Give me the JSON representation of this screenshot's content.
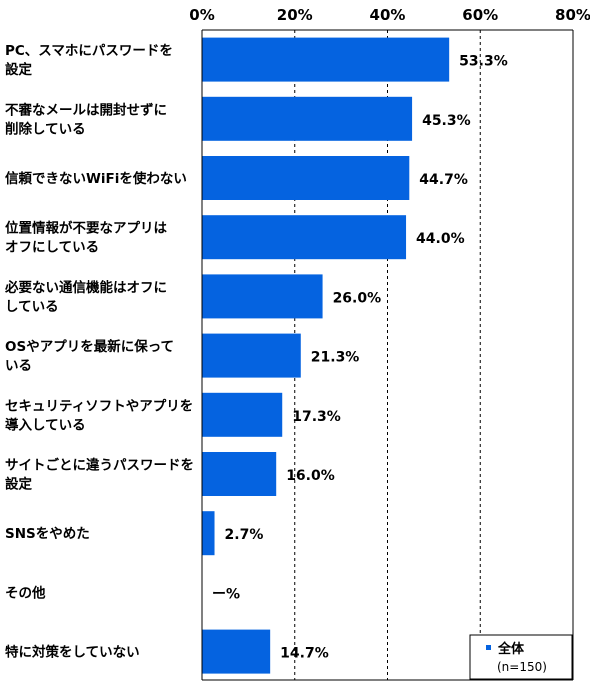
{
  "chart_data": {
    "type": "bar",
    "orientation": "horizontal",
    "categories": [
      [
        "PC、スマホにパスワードを",
        "設定"
      ],
      [
        "不審なメールは開封せずに",
        "削除している"
      ],
      [
        "信頼できないWiFiを使わない"
      ],
      [
        "位置情報が不要なアプリは",
        "オフにしている"
      ],
      [
        "必要ない通信機能はオフに",
        "している"
      ],
      [
        "OSやアプリを最新に保って",
        "いる"
      ],
      [
        "セキュリティソフトやアプリを",
        "導入している"
      ],
      [
        "サイトごとに違うパスワードを",
        "設定"
      ],
      [
        "SNSをやめた"
      ],
      [
        "その他"
      ],
      [
        "特に対策をしていない"
      ]
    ],
    "values": [
      53.3,
      45.3,
      44.7,
      44.0,
      26.0,
      21.3,
      17.3,
      16.0,
      2.7,
      0,
      14.7
    ],
    "value_labels": [
      "53.3%",
      "45.3%",
      "44.7%",
      "44.0%",
      "26.0%",
      "21.3%",
      "17.3%",
      "16.0%",
      "2.7%",
      "ー%",
      "14.7%"
    ],
    "xlim": [
      0,
      80
    ],
    "x_ticks": [
      "0%",
      "20%",
      "40%",
      "60%",
      "80%"
    ],
    "x_tick_values": [
      0,
      20,
      40,
      60,
      80
    ],
    "grid": true,
    "grid_style": "dashed",
    "bar_color": "#0563E0",
    "legend": {
      "position": "bottom-right",
      "series_name": "全体",
      "note": "(n=150)"
    }
  }
}
